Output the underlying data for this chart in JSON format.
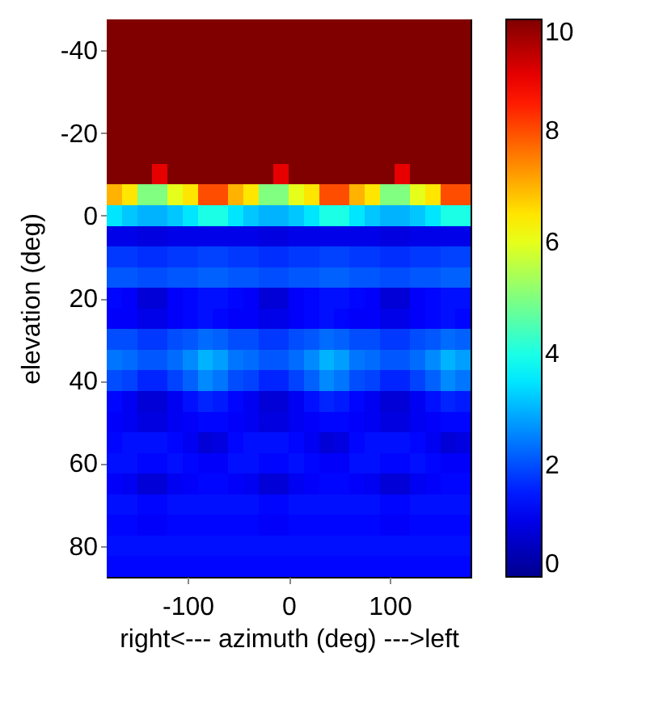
{
  "chart_data": {
    "type": "heatmap",
    "xlabel": "right<--- azimuth (deg) --->left",
    "ylabel": "elevation (deg)",
    "x": [
      -172.5,
      -157.5,
      -142.5,
      -127.5,
      -112.5,
      -97.5,
      -82.5,
      -67.5,
      -52.5,
      -37.5,
      -22.5,
      -7.5,
      7.5,
      22.5,
      37.5,
      52.5,
      67.5,
      82.5,
      97.5,
      112.5,
      127.5,
      142.5,
      157.5,
      172.5
    ],
    "y": [
      -45,
      -40,
      -35,
      -30,
      -25,
      -20,
      -15,
      -10,
      -5,
      0,
      5,
      10,
      15,
      20,
      25,
      30,
      35,
      40,
      45,
      50,
      55,
      60,
      65,
      70,
      75,
      80,
      85
    ],
    "xlim": [
      -180,
      180
    ],
    "xticks": [
      -100,
      0,
      100
    ],
    "ylim": [
      87.5,
      -47.5
    ],
    "yticks": [
      -40,
      -20,
      0,
      20,
      40,
      60,
      80
    ],
    "clim": [
      0,
      10
    ],
    "cticks": [
      0,
      2,
      4,
      6,
      8,
      10
    ],
    "cells": [
      [
        10,
        10,
        10,
        10,
        10,
        10,
        10,
        10,
        10,
        10,
        10,
        10,
        10,
        10,
        10,
        10,
        10,
        10,
        10,
        10,
        10,
        10,
        10,
        10
      ],
      [
        10,
        10,
        10,
        10,
        10,
        10,
        10,
        10,
        10,
        10,
        10,
        10,
        10,
        10,
        10,
        10,
        10,
        10,
        10,
        10,
        10,
        10,
        10,
        10
      ],
      [
        10,
        10,
        10,
        10,
        10,
        10,
        10,
        10,
        10,
        10,
        10,
        10,
        10,
        10,
        10,
        10,
        10,
        10,
        10,
        10,
        10,
        10,
        10,
        10
      ],
      [
        10,
        10,
        10,
        10,
        10,
        10,
        10,
        10,
        10,
        10,
        10,
        10,
        10,
        10,
        10,
        10,
        10,
        10,
        10,
        10,
        10,
        10,
        10,
        10
      ],
      [
        10,
        10,
        10,
        10,
        10,
        10,
        10,
        10,
        10,
        10,
        10,
        10,
        10,
        10,
        10,
        10,
        10,
        10,
        10,
        10,
        10,
        10,
        10,
        10
      ],
      [
        10,
        10,
        10,
        10,
        10,
        10,
        10,
        10,
        10,
        10,
        10,
        10,
        10,
        10,
        10,
        10,
        10,
        10,
        10,
        10,
        10,
        10,
        10,
        10
      ],
      [
        10,
        10,
        10,
        10,
        10,
        10,
        10,
        10,
        10,
        10,
        10,
        10,
        10,
        10,
        10,
        10,
        10,
        10,
        10,
        10,
        10,
        10,
        10,
        10
      ],
      [
        10,
        10,
        10,
        9,
        10,
        10,
        10,
        10,
        10,
        10,
        10,
        9,
        10,
        10,
        10,
        10,
        10,
        10,
        10,
        9,
        10,
        10,
        10,
        10
      ],
      [
        7,
        6.5,
        5,
        5,
        6,
        6.5,
        8,
        8,
        7,
        6.5,
        5,
        5,
        6,
        6.5,
        8,
        8,
        7,
        6.5,
        5,
        5,
        6,
        6.5,
        8,
        8
      ],
      [
        3.5,
        3.2,
        3,
        3,
        3.2,
        3.5,
        4,
        4,
        3.5,
        3.2,
        3,
        3,
        3.2,
        3.5,
        4,
        4,
        3.5,
        3.2,
        3,
        3,
        3.2,
        3.5,
        4,
        4
      ],
      [
        1,
        1,
        0.9,
        0.9,
        1,
        1,
        1,
        1,
        1,
        1,
        0.9,
        0.9,
        1,
        1,
        1,
        1,
        1,
        1,
        0.9,
        0.9,
        1,
        1,
        1,
        1
      ],
      [
        1.8,
        1.8,
        1.7,
        1.7,
        1.8,
        1.8,
        1.9,
        1.9,
        1.8,
        1.8,
        1.7,
        1.7,
        1.8,
        1.8,
        1.9,
        1.9,
        1.8,
        1.8,
        1.7,
        1.7,
        1.8,
        1.8,
        1.9,
        1.9
      ],
      [
        2.1,
        2.1,
        2,
        2,
        2.1,
        2.1,
        2.2,
        2.2,
        2.1,
        2.1,
        2,
        2,
        2.1,
        2.1,
        2.2,
        2.2,
        2.1,
        2.1,
        2,
        2,
        2.1,
        2.1,
        2.2,
        2.2
      ],
      [
        1.3,
        1.2,
        0.8,
        0.8,
        1.2,
        1.3,
        1.4,
        1.4,
        1.3,
        1.2,
        0.8,
        0.8,
        1.2,
        1.3,
        1.4,
        1.4,
        1.3,
        1.2,
        0.8,
        0.8,
        1.2,
        1.3,
        1.4,
        1.4
      ],
      [
        1.2,
        1.2,
        1,
        1,
        1.2,
        1.3,
        1.4,
        1.3,
        1.2,
        1.2,
        1,
        1,
        1.2,
        1.3,
        1.4,
        1.3,
        1.2,
        1.2,
        1,
        1,
        1.2,
        1.3,
        1.4,
        1.3
      ],
      [
        2,
        2,
        1.8,
        1.8,
        2,
        2.1,
        2.3,
        2.2,
        2,
        2,
        1.8,
        1.8,
        2,
        2.1,
        2.3,
        2.2,
        2,
        2,
        1.8,
        1.8,
        2,
        2.1,
        2.3,
        2.2
      ],
      [
        2.4,
        2.3,
        2.1,
        2.1,
        2.3,
        2.6,
        3,
        2.8,
        2.4,
        2.3,
        2.1,
        2.1,
        2.3,
        2.6,
        3,
        2.8,
        2.4,
        2.3,
        2.1,
        2.1,
        2.3,
        2.6,
        3,
        2.8
      ],
      [
        2,
        1.9,
        1.6,
        1.6,
        1.9,
        2.2,
        2.6,
        2.4,
        2,
        1.9,
        1.6,
        1.6,
        1.9,
        2.2,
        2.6,
        2.4,
        2,
        1.9,
        1.6,
        1.6,
        1.9,
        2.2,
        2.6,
        2.4
      ],
      [
        1.3,
        1.1,
        0.8,
        0.8,
        1.1,
        1.4,
        1.6,
        1.5,
        1.3,
        1.1,
        0.8,
        0.8,
        1.1,
        1.4,
        1.6,
        1.5,
        1.3,
        1.1,
        0.8,
        0.8,
        1.1,
        1.4,
        1.6,
        1.5
      ],
      [
        1.2,
        1.1,
        0.9,
        0.9,
        1.1,
        1.2,
        1.3,
        1.3,
        1.2,
        1.1,
        0.9,
        0.9,
        1.1,
        1.2,
        1.3,
        1.3,
        1.2,
        1.1,
        0.9,
        0.9,
        1.1,
        1.2,
        1.3,
        1.3
      ],
      [
        1.3,
        1.4,
        1.4,
        1.4,
        1.3,
        1.1,
        0.8,
        0.9,
        1.3,
        1.4,
        1.4,
        1.4,
        1.3,
        1.1,
        0.8,
        0.9,
        1.3,
        1.4,
        1.4,
        1.4,
        1.3,
        1.1,
        0.8,
        0.9
      ],
      [
        1.4,
        1.4,
        1.3,
        1.3,
        1.4,
        1.3,
        1.2,
        1.2,
        1.4,
        1.4,
        1.3,
        1.3,
        1.4,
        1.3,
        1.2,
        1.2,
        1.4,
        1.4,
        1.3,
        1.3,
        1.4,
        1.3,
        1.2,
        1.2
      ],
      [
        1.2,
        1.1,
        0.8,
        0.8,
        1.1,
        1.2,
        1.3,
        1.3,
        1.2,
        1.1,
        0.8,
        0.8,
        1.1,
        1.2,
        1.3,
        1.3,
        1.2,
        1.1,
        0.8,
        0.8,
        1.1,
        1.2,
        1.3,
        1.3
      ],
      [
        1.4,
        1.4,
        1.3,
        1.3,
        1.4,
        1.4,
        1.4,
        1.4,
        1.4,
        1.4,
        1.3,
        1.3,
        1.4,
        1.4,
        1.4,
        1.4,
        1.4,
        1.4,
        1.3,
        1.3,
        1.4,
        1.4,
        1.4,
        1.4
      ],
      [
        1.3,
        1.3,
        1.2,
        1.2,
        1.3,
        1.3,
        1.3,
        1.3,
        1.3,
        1.3,
        1.2,
        1.2,
        1.3,
        1.3,
        1.3,
        1.3,
        1.3,
        1.3,
        1.2,
        1.2,
        1.3,
        1.3,
        1.3,
        1.3
      ],
      [
        1.4,
        1.4,
        1.4,
        1.4,
        1.4,
        1.4,
        1.4,
        1.4,
        1.4,
        1.4,
        1.4,
        1.4,
        1.4,
        1.4,
        1.4,
        1.4,
        1.4,
        1.4,
        1.4,
        1.4,
        1.4,
        1.4,
        1.4,
        1.4
      ],
      [
        1.3,
        1.3,
        1.3,
        1.3,
        1.3,
        1.3,
        1.3,
        1.3,
        1.3,
        1.3,
        1.3,
        1.3,
        1.3,
        1.3,
        1.3,
        1.3,
        1.3,
        1.3,
        1.3,
        1.3,
        1.3,
        1.3,
        1.3,
        1.3
      ]
    ]
  }
}
